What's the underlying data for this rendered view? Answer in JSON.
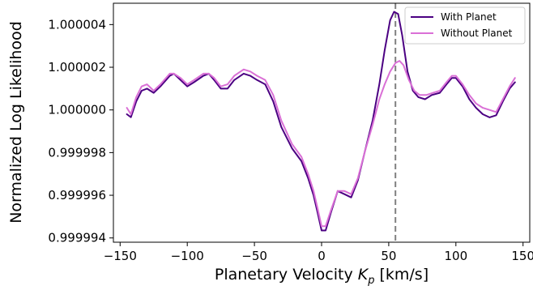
{
  "chart_data": {
    "type": "line",
    "xlabel": "Planetary Velocity",
    "xlabel_symbol": "K",
    "xlabel_subscript": "p",
    "xlabel_unit": "[km/s]",
    "ylabel": "Normalized Log Likelihood",
    "xlim": [
      -155,
      155
    ],
    "ylim": [
      0.9999938,
      1.000005
    ],
    "x_ticks": [
      -150,
      -100,
      -50,
      0,
      50,
      100,
      150
    ],
    "x_tick_labels": [
      "−150",
      "−100",
      "−50",
      "0",
      "50",
      "100",
      "150"
    ],
    "y_ticks": [
      0.999994,
      0.999996,
      0.999998,
      1.0,
      1.000002,
      1.000004
    ],
    "y_tick_labels": [
      "0.999994",
      "0.999996",
      "0.999998",
      "1.000000",
      "1.000002",
      "1.000004"
    ],
    "grid": false,
    "legend_position": "top-right",
    "vline": {
      "x": 55,
      "color": "#808080",
      "style": "dashed"
    },
    "series": [
      {
        "name": "With Planet",
        "color": "#4b0082",
        "points": [
          [
            -145,
            0.9999998
          ],
          [
            -142,
            0.99999966
          ],
          [
            -138,
            1.0000004
          ],
          [
            -134,
            1.0000009
          ],
          [
            -130,
            1.000001
          ],
          [
            -125,
            1.0000008
          ],
          [
            -120,
            1.0000011
          ],
          [
            -113,
            1.0000016
          ],
          [
            -110,
            1.0000017
          ],
          [
            -105,
            1.0000014
          ],
          [
            -100,
            1.0000011
          ],
          [
            -95,
            1.0000013
          ],
          [
            -88,
            1.0000016
          ],
          [
            -84,
            1.0000017
          ],
          [
            -80,
            1.0000014
          ],
          [
            -75,
            1.000001
          ],
          [
            -70,
            1.000001
          ],
          [
            -65,
            1.0000014
          ],
          [
            -58,
            1.0000017
          ],
          [
            -53,
            1.0000016
          ],
          [
            -48,
            1.0000014
          ],
          [
            -42,
            1.0000012
          ],
          [
            -36,
            1.0000004
          ],
          [
            -30,
            0.9999992
          ],
          [
            -22,
            0.9999982
          ],
          [
            -15,
            0.9999976
          ],
          [
            -10,
            0.9999968
          ],
          [
            -6,
            0.999996
          ],
          [
            -3,
            0.9999952
          ],
          [
            0,
            0.99999435
          ],
          [
            3,
            0.99999435
          ],
          [
            7,
            0.9999952
          ],
          [
            12,
            0.9999962
          ],
          [
            17,
            0.99999605
          ],
          [
            22,
            0.9999959
          ],
          [
            27,
            0.9999967
          ],
          [
            32,
            0.999998
          ],
          [
            38,
            0.9999995
          ],
          [
            43,
            1.0000012
          ],
          [
            47,
            1.0000028
          ],
          [
            51,
            1.0000042
          ],
          [
            54,
            1.0000046
          ],
          [
            57,
            1.0000045
          ],
          [
            60,
            1.0000035
          ],
          [
            64,
            1.0000018
          ],
          [
            68,
            1.0000009
          ],
          [
            72,
            1.0000006
          ],
          [
            77,
            1.0000005
          ],
          [
            82,
            1.0000007
          ],
          [
            88,
            1.0000008
          ],
          [
            93,
            1.0000012
          ],
          [
            97,
            1.0000015
          ],
          [
            100,
            1.0000015
          ],
          [
            105,
            1.0000011
          ],
          [
            110,
            1.0000005
          ],
          [
            115,
            1.0000001
          ],
          [
            120,
            0.9999998
          ],
          [
            125,
            0.99999965
          ],
          [
            130,
            0.99999975
          ],
          [
            135,
            1.0000004
          ],
          [
            140,
            1.000001
          ],
          [
            144,
            1.0000013
          ]
        ]
      },
      {
        "name": "Without Planet",
        "color": "#da70d6",
        "points": [
          [
            -145,
            1.0000001
          ],
          [
            -142,
            0.9999998
          ],
          [
            -138,
            1.0000006
          ],
          [
            -134,
            1.0000011
          ],
          [
            -130,
            1.0000012
          ],
          [
            -125,
            1.0000009
          ],
          [
            -120,
            1.0000012
          ],
          [
            -113,
            1.0000017
          ],
          [
            -110,
            1.0000017
          ],
          [
            -105,
            1.0000015
          ],
          [
            -100,
            1.0000012
          ],
          [
            -95,
            1.0000014
          ],
          [
            -88,
            1.0000017
          ],
          [
            -84,
            1.0000017
          ],
          [
            -80,
            1.0000015
          ],
          [
            -75,
            1.0000011
          ],
          [
            -70,
            1.0000012
          ],
          [
            -65,
            1.0000016
          ],
          [
            -58,
            1.0000019
          ],
          [
            -53,
            1.0000018
          ],
          [
            -48,
            1.0000016
          ],
          [
            -42,
            1.0000014
          ],
          [
            -36,
            1.0000007
          ],
          [
            -30,
            0.9999995
          ],
          [
            -22,
            0.9999984
          ],
          [
            -15,
            0.9999978
          ],
          [
            -10,
            0.999997
          ],
          [
            -6,
            0.9999962
          ],
          [
            -3,
            0.9999954
          ],
          [
            0,
            0.99999455
          ],
          [
            3,
            0.99999455
          ],
          [
            7,
            0.9999953
          ],
          [
            12,
            0.9999962
          ],
          [
            17,
            0.9999962
          ],
          [
            22,
            0.99999605
          ],
          [
            27,
            0.9999968
          ],
          [
            32,
            0.999998
          ],
          [
            38,
            0.9999993
          ],
          [
            43,
            1.0000005
          ],
          [
            47,
            1.0000012
          ],
          [
            51,
            1.0000018
          ],
          [
            55,
            1.0000022
          ],
          [
            58,
            1.0000023
          ],
          [
            61,
            1.0000021
          ],
          [
            65,
            1.0000014
          ],
          [
            69,
            1.0000009
          ],
          [
            73,
            1.0000007
          ],
          [
            78,
            1.0000007
          ],
          [
            83,
            1.0000008
          ],
          [
            88,
            1.0000009
          ],
          [
            93,
            1.0000013
          ],
          [
            97,
            1.0000016
          ],
          [
            100,
            1.0000016
          ],
          [
            105,
            1.0000012
          ],
          [
            110,
            1.0000007
          ],
          [
            115,
            1.0000003
          ],
          [
            120,
            1.0000001
          ],
          [
            125,
            1.0
          ],
          [
            130,
            0.9999999
          ],
          [
            135,
            1.0000005
          ],
          [
            140,
            1.0000011
          ],
          [
            144,
            1.0000015
          ]
        ]
      }
    ]
  }
}
